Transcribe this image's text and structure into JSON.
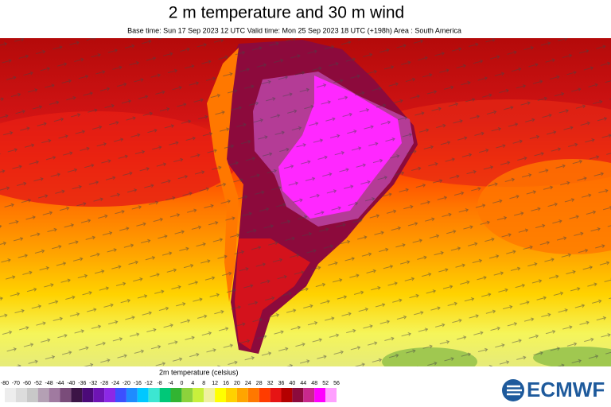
{
  "header": {
    "title": "2 m temperature and 30 m wind",
    "subtitle": "Base time: Sun 17 Sep 2023 12 UTC Valid time: Mon 25 Sep 2023 18 UTC (+198h) Area : South America"
  },
  "legend": {
    "label": "2m temperature (celsius)",
    "ticks": [
      -80,
      -70,
      -60,
      -52,
      -48,
      -44,
      -40,
      -36,
      -32,
      -28,
      -24,
      -20,
      -16,
      -12,
      -8,
      -4,
      0,
      4,
      8,
      12,
      16,
      20,
      24,
      28,
      32,
      36,
      40,
      44,
      48,
      52,
      56
    ],
    "colors": [
      "#ededed",
      "#dcdcdc",
      "#c8c8c8",
      "#b4a0b4",
      "#a07aa0",
      "#7a4c7a",
      "#3c1446",
      "#4b0a78",
      "#6e14b4",
      "#8c28e6",
      "#3c50ff",
      "#1e8cff",
      "#00c8ff",
      "#3ce6d2",
      "#00c878",
      "#32b432",
      "#8cd23c",
      "#c8f03c",
      "#f0f0a0",
      "#ffff00",
      "#ffd200",
      "#ffa500",
      "#ff7800",
      "#ff3c00",
      "#e61414",
      "#b40000",
      "#8c0a3c",
      "#c8288c",
      "#ff00ff",
      "#ffa0ff"
    ]
  },
  "logo": {
    "text": "ECMWF"
  }
}
